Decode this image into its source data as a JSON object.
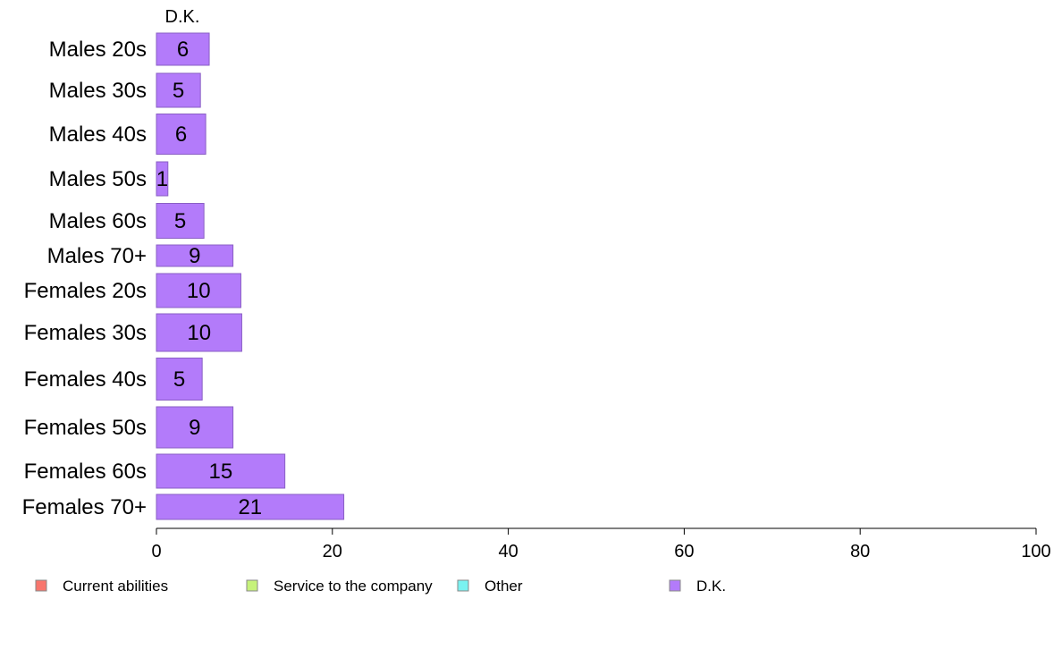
{
  "chart_data": {
    "type": "bar",
    "orientation": "horizontal",
    "stacked": true,
    "column_header": "D.K.",
    "categories": [
      "Males 20s",
      "Males 30s",
      "Males 40s",
      "Males 50s",
      "Males 60s",
      "Males 70+",
      "Females 20s",
      "Females 30s",
      "Females 40s",
      "Females 50s",
      "Females 60s",
      "Females 70+"
    ],
    "series": [
      {
        "name": "Current abilities",
        "color": "#f8766d",
        "values": [
          0,
          0,
          0,
          0,
          0,
          0,
          0,
          0,
          0,
          0,
          0,
          0
        ]
      },
      {
        "name": "Service to the company",
        "color": "#c6f27a",
        "values": [
          0,
          0,
          0,
          0,
          0,
          0,
          0,
          0,
          0,
          0,
          0,
          0
        ]
      },
      {
        "name": "Other",
        "color": "#7af2f0",
        "values": [
          0,
          0,
          0,
          0,
          0,
          0,
          0,
          0,
          0,
          0,
          0,
          0
        ]
      },
      {
        "name": "D.K.",
        "color": "#b37bfa",
        "values": [
          6,
          5,
          5.6,
          1.3,
          5.4,
          8.7,
          9.6,
          9.7,
          5.2,
          8.7,
          14.6,
          21.3
        ]
      }
    ],
    "data_labels": [
      "6",
      "5",
      "6",
      "1",
      "5",
      "9",
      "10",
      "10",
      "5",
      "9",
      "15",
      "21"
    ],
    "xlim": [
      0,
      100
    ],
    "xticks": [
      "0",
      "20",
      "40",
      "60",
      "80",
      "100"
    ],
    "xlabel": "",
    "ylabel": "",
    "grid": false,
    "legend_position": "bottom"
  }
}
